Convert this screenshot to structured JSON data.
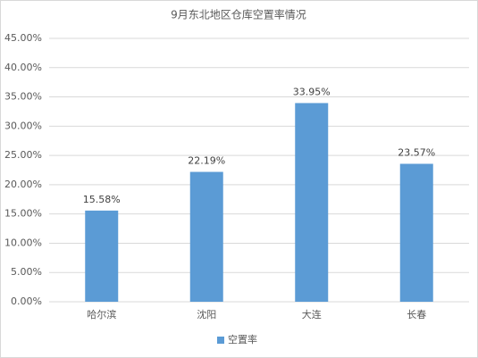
{
  "chart_data": {
    "type": "bar",
    "title": "9月东北地区仓库空置率情况",
    "categories": [
      "哈尔滨",
      "沈阳",
      "大连",
      "长春"
    ],
    "series": [
      {
        "name": "空置率",
        "color": "#5b9bd5",
        "values": [
          15.58,
          22.19,
          33.95,
          23.57
        ],
        "value_labels": [
          "15.58%",
          "22.19%",
          "33.95%",
          "23.57%"
        ]
      }
    ],
    "ylim": [
      0,
      45
    ],
    "yticks": [
      {
        "value": 0,
        "label": "0.00%"
      },
      {
        "value": 5,
        "label": "5.00%"
      },
      {
        "value": 10,
        "label": "10.00%"
      },
      {
        "value": 15,
        "label": "15.00%"
      },
      {
        "value": 20,
        "label": "20.00%"
      },
      {
        "value": 25,
        "label": "25.00%"
      },
      {
        "value": 30,
        "label": "30.00%"
      },
      {
        "value": 35,
        "label": "35.00%"
      },
      {
        "value": 40,
        "label": "40.00%"
      },
      {
        "value": 45,
        "label": "45.00%"
      }
    ],
    "grid": true,
    "legend": "bottom"
  }
}
